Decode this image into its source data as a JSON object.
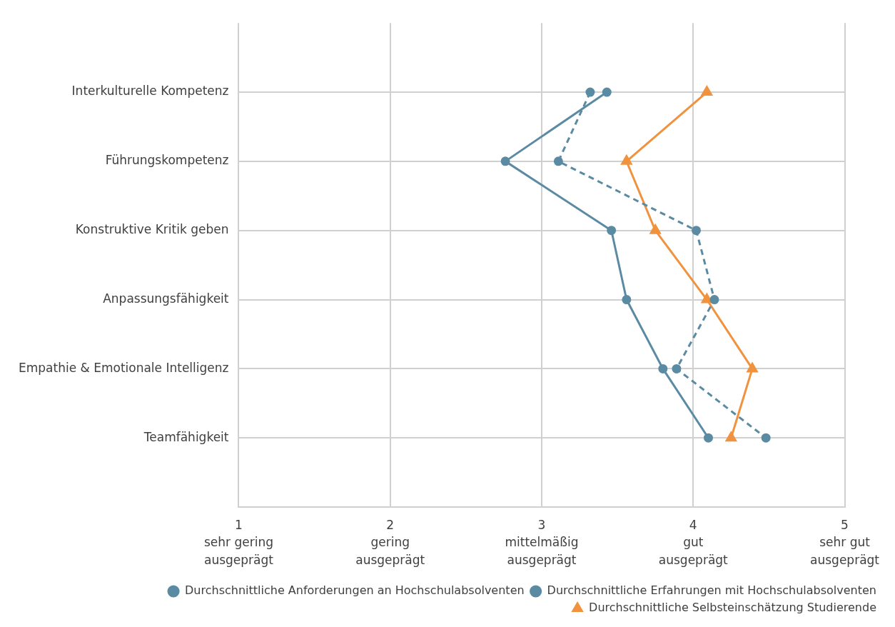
{
  "chart_data": {
    "type": "line",
    "orientation": "horizontal",
    "categories": [
      "Interkulturelle Kompetenz",
      "Führungskompetenz",
      "Konstruktive Kritik geben",
      "Anpassungsfähigkeit",
      "Empathie & Emotionale Intelligenz",
      "Teamfähigkeit"
    ],
    "series": [
      {
        "name": "Durchschnittliche Anforderungen an Hochschulabsolventen",
        "color": "#5b8ba3",
        "line_style": "dashed",
        "marker": "circle",
        "values": [
          3.32,
          3.11,
          4.02,
          4.14,
          3.89,
          4.48
        ]
      },
      {
        "name": "Durchschnittliche Erfahrungen mit Hochschulabsolventen",
        "color": "#5b8ba3",
        "line_style": "solid",
        "marker": "circle",
        "values": [
          3.43,
          2.76,
          3.46,
          3.56,
          3.8,
          4.1
        ]
      },
      {
        "name": "Durchschnittliche Selbsteinschätzung Studierende",
        "color": "#f0923e",
        "line_style": "solid",
        "marker": "triangle",
        "values": [
          4.09,
          3.56,
          3.75,
          4.09,
          4.39,
          4.25
        ]
      }
    ],
    "xlim": [
      1,
      5
    ],
    "xticks": [
      {
        "value": 1,
        "label": "1\nsehr gering\nausgeprägt"
      },
      {
        "value": 2,
        "label": "2\ngering\nausgeprägt"
      },
      {
        "value": 3,
        "label": "3\nmittelmäßig\nausgeprägt"
      },
      {
        "value": 4,
        "label": "4\ngut\nausgeprägt"
      },
      {
        "value": 5,
        "label": "5\nsehr gut\nausgeprägt"
      }
    ],
    "grid": true,
    "legend": "bottom"
  }
}
